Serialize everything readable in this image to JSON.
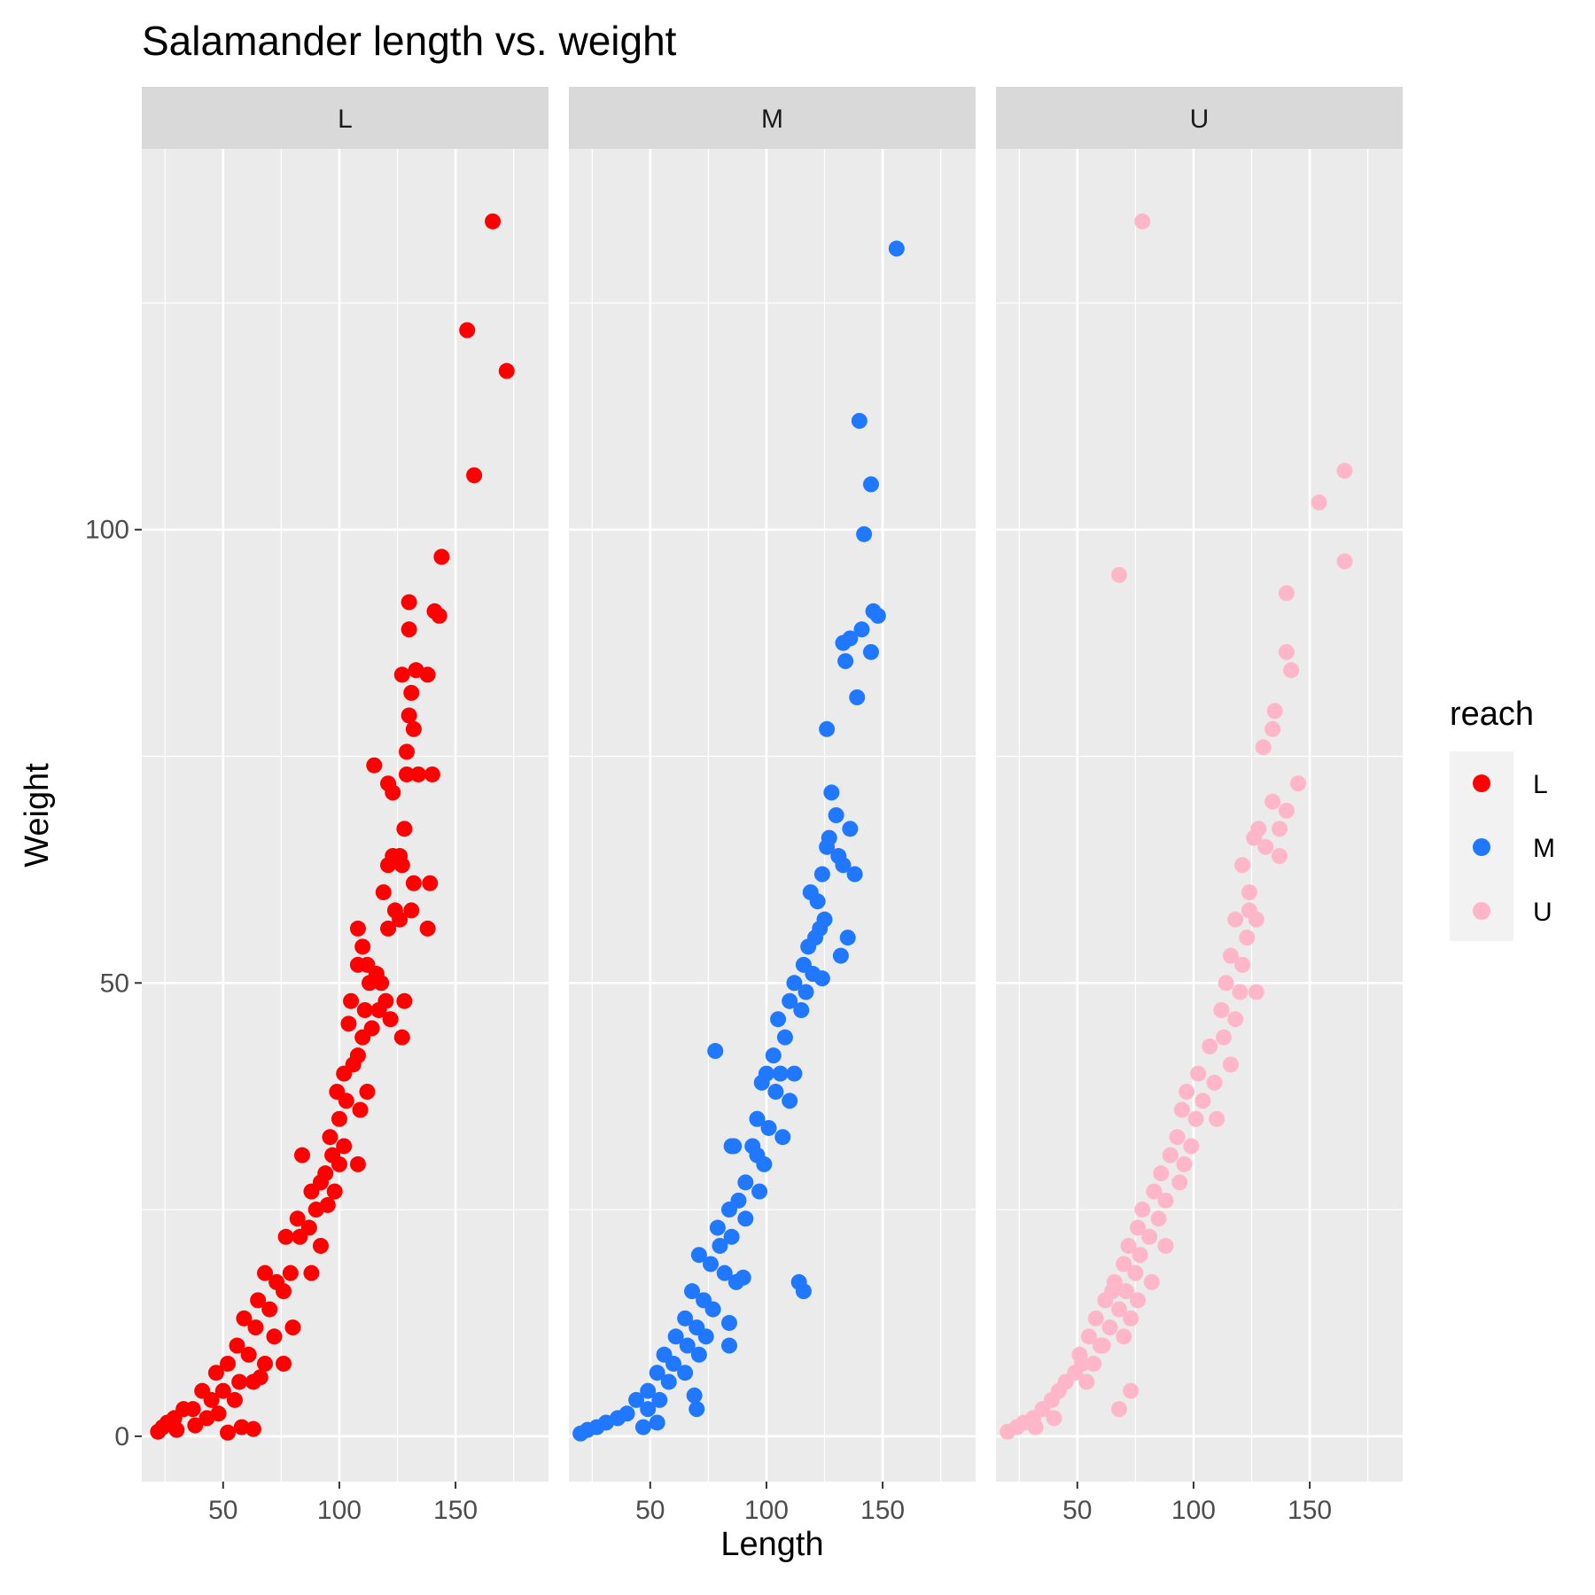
{
  "chart_data": {
    "type": "scatter",
    "title": "Salamander length vs. weight",
    "xlabel": "Length",
    "ylabel": "Weight",
    "xlim": [
      15,
      190
    ],
    "ylim": [
      -5,
      142
    ],
    "x_ticks": [
      50,
      100,
      150
    ],
    "y_ticks": [
      0,
      50,
      100
    ],
    "grid": true,
    "facet_by": "reach",
    "legend": {
      "title": "reach",
      "position": "right"
    },
    "series": [
      {
        "name": "L",
        "color": "#ff0000",
        "points": [
          [
            166,
            134
          ],
          [
            155,
            122
          ],
          [
            172,
            117.5
          ],
          [
            158,
            106
          ],
          [
            144,
            97
          ],
          [
            130,
            92
          ],
          [
            141,
            91
          ],
          [
            143,
            90.5
          ],
          [
            130,
            89
          ],
          [
            133,
            84.5
          ],
          [
            127,
            84
          ],
          [
            138,
            84
          ],
          [
            131,
            82
          ],
          [
            130,
            79.5
          ],
          [
            132,
            78
          ],
          [
            129,
            75.5
          ],
          [
            134,
            73
          ],
          [
            115,
            74
          ],
          [
            129,
            73
          ],
          [
            140,
            73
          ],
          [
            121,
            72
          ],
          [
            123,
            71
          ],
          [
            128,
            67
          ],
          [
            126,
            64
          ],
          [
            123,
            64
          ],
          [
            127,
            63
          ],
          [
            121,
            63
          ],
          [
            119,
            60
          ],
          [
            132,
            61
          ],
          [
            139,
            61
          ],
          [
            124,
            58
          ],
          [
            131,
            58
          ],
          [
            126,
            57
          ],
          [
            121,
            56
          ],
          [
            138,
            56
          ],
          [
            108,
            56
          ],
          [
            110,
            54
          ],
          [
            112,
            52
          ],
          [
            108,
            52
          ],
          [
            116,
            51
          ],
          [
            118,
            50
          ],
          [
            113,
            50
          ],
          [
            120,
            48
          ],
          [
            111,
            47
          ],
          [
            105,
            48
          ],
          [
            117,
            47
          ],
          [
            128,
            48
          ],
          [
            122,
            46
          ],
          [
            104,
            45.5
          ],
          [
            114,
            45
          ],
          [
            110,
            44
          ],
          [
            127,
            44
          ],
          [
            108,
            42
          ],
          [
            102,
            40
          ],
          [
            106,
            41
          ],
          [
            112,
            38
          ],
          [
            99,
            38
          ],
          [
            103,
            37
          ],
          [
            109,
            36
          ],
          [
            100,
            35
          ],
          [
            96,
            33
          ],
          [
            102,
            32
          ],
          [
            97,
            31
          ],
          [
            108,
            30
          ],
          [
            84,
            31
          ],
          [
            100,
            30
          ],
          [
            94,
            29
          ],
          [
            92,
            28
          ],
          [
            98,
            27
          ],
          [
            88,
            27
          ],
          [
            95,
            25.5
          ],
          [
            90,
            25
          ],
          [
            82,
            24
          ],
          [
            87,
            23
          ],
          [
            77,
            22
          ],
          [
            83,
            22
          ],
          [
            92,
            21
          ],
          [
            68,
            18
          ],
          [
            79,
            18
          ],
          [
            88,
            18
          ],
          [
            73,
            17
          ],
          [
            76,
            16
          ],
          [
            65,
            15
          ],
          [
            70,
            14
          ],
          [
            59,
            13
          ],
          [
            64,
            12
          ],
          [
            72,
            11
          ],
          [
            80,
            12
          ],
          [
            56,
            10
          ],
          [
            61,
            9
          ],
          [
            68,
            8
          ],
          [
            76,
            8
          ],
          [
            52,
            8
          ],
          [
            47,
            7
          ],
          [
            57,
            6
          ],
          [
            63,
            6
          ],
          [
            50,
            5
          ],
          [
            41,
            5
          ],
          [
            45,
            4
          ],
          [
            55,
            4
          ],
          [
            37,
            3
          ],
          [
            33,
            3
          ],
          [
            43,
            2
          ],
          [
            29,
            2
          ],
          [
            26,
            1.5
          ],
          [
            24,
            1
          ],
          [
            22,
            0.5
          ],
          [
            30,
            0.7
          ],
          [
            38,
            1.2
          ],
          [
            52,
            0.4
          ],
          [
            58,
            1
          ],
          [
            63,
            0.8
          ],
          [
            48,
            2.5
          ],
          [
            66,
            6.5
          ]
        ]
      },
      {
        "name": "M",
        "color": "#1f78ff",
        "points": [
          [
            156,
            131
          ],
          [
            140,
            112
          ],
          [
            145,
            105
          ],
          [
            142,
            99.5
          ],
          [
            146,
            91
          ],
          [
            148,
            90.5
          ],
          [
            141,
            89
          ],
          [
            136,
            88
          ],
          [
            133,
            87.5
          ],
          [
            145,
            86.5
          ],
          [
            134,
            85.5
          ],
          [
            139,
            81.5
          ],
          [
            126,
            78
          ],
          [
            128,
            71
          ],
          [
            130,
            68.5
          ],
          [
            127,
            66
          ],
          [
            136,
            67
          ],
          [
            126,
            65
          ],
          [
            124,
            62
          ],
          [
            131,
            64
          ],
          [
            133,
            63
          ],
          [
            138,
            62
          ],
          [
            119,
            60
          ],
          [
            122,
            59
          ],
          [
            125,
            57
          ],
          [
            123,
            56
          ],
          [
            121,
            55
          ],
          [
            135,
            55
          ],
          [
            118,
            54
          ],
          [
            132,
            53
          ],
          [
            116,
            52
          ],
          [
            120,
            51
          ],
          [
            112,
            50
          ],
          [
            117,
            49
          ],
          [
            124,
            50.5
          ],
          [
            110,
            48
          ],
          [
            115,
            47
          ],
          [
            105,
            46
          ],
          [
            108,
            44
          ],
          [
            103,
            42
          ],
          [
            106,
            40
          ],
          [
            112,
            40
          ],
          [
            98,
            39
          ],
          [
            104,
            38
          ],
          [
            110,
            37
          ],
          [
            96,
            35
          ],
          [
            101,
            34
          ],
          [
            107,
            33
          ],
          [
            94,
            32
          ],
          [
            99,
            30
          ],
          [
            86,
            32
          ],
          [
            91,
            28
          ],
          [
            97,
            27
          ],
          [
            88,
            26
          ],
          [
            84,
            25
          ],
          [
            91,
            24
          ],
          [
            79,
            23
          ],
          [
            85,
            22
          ],
          [
            80,
            21
          ],
          [
            71,
            20
          ],
          [
            76,
            19
          ],
          [
            82,
            18
          ],
          [
            87,
            17
          ],
          [
            90,
            17.5
          ],
          [
            114,
            17
          ],
          [
            116,
            16
          ],
          [
            68,
            16
          ],
          [
            73,
            15
          ],
          [
            77,
            14
          ],
          [
            65,
            13
          ],
          [
            70,
            12
          ],
          [
            74,
            11
          ],
          [
            84,
            12.5
          ],
          [
            61,
            11
          ],
          [
            66,
            10
          ],
          [
            71,
            9
          ],
          [
            56,
            9
          ],
          [
            60,
            8
          ],
          [
            65,
            7
          ],
          [
            53,
            7
          ],
          [
            58,
            6
          ],
          [
            49,
            5
          ],
          [
            54,
            4
          ],
          [
            44,
            4
          ],
          [
            49,
            3
          ],
          [
            40,
            2.5
          ],
          [
            36,
            2
          ],
          [
            31,
            1.5
          ],
          [
            27,
            1
          ],
          [
            23,
            0.7
          ],
          [
            20,
            0.3
          ],
          [
            47,
            1
          ],
          [
            53,
            1.5
          ],
          [
            69,
            4.5
          ],
          [
            70,
            3
          ],
          [
            78,
            42.5
          ],
          [
            85,
            32
          ],
          [
            84,
            10
          ],
          [
            100,
            40
          ],
          [
            96,
            31
          ]
        ]
      },
      {
        "name": "U",
        "color": "#ffb6c8",
        "points": [
          [
            78,
            134
          ],
          [
            165,
            106.5
          ],
          [
            154,
            103
          ],
          [
            165,
            96.5
          ],
          [
            68,
            95
          ],
          [
            140,
            93
          ],
          [
            140,
            86.5
          ],
          [
            142,
            84.5
          ],
          [
            135,
            80
          ],
          [
            134,
            78
          ],
          [
            130,
            76
          ],
          [
            145,
            72
          ],
          [
            140,
            69
          ],
          [
            134,
            70
          ],
          [
            128,
            67
          ],
          [
            126,
            66
          ],
          [
            137,
            67
          ],
          [
            131,
            65
          ],
          [
            121,
            63
          ],
          [
            137,
            64
          ],
          [
            124,
            60
          ],
          [
            124,
            58
          ],
          [
            118,
            57
          ],
          [
            127,
            57
          ],
          [
            123,
            55
          ],
          [
            116,
            53
          ],
          [
            121,
            52
          ],
          [
            114,
            50
          ],
          [
            120,
            49
          ],
          [
            127,
            49
          ],
          [
            112,
            47
          ],
          [
            118,
            46
          ],
          [
            113,
            44
          ],
          [
            107,
            43
          ],
          [
            116,
            41
          ],
          [
            102,
            40
          ],
          [
            109,
            39
          ],
          [
            97,
            38
          ],
          [
            104,
            37
          ],
          [
            95,
            36
          ],
          [
            101,
            35
          ],
          [
            110,
            35
          ],
          [
            93,
            33
          ],
          [
            99,
            32
          ],
          [
            90,
            31
          ],
          [
            96,
            30
          ],
          [
            86,
            29
          ],
          [
            94,
            28
          ],
          [
            83,
            27
          ],
          [
            88,
            26
          ],
          [
            78,
            25
          ],
          [
            85,
            24
          ],
          [
            76,
            23
          ],
          [
            81,
            22
          ],
          [
            88,
            21
          ],
          [
            72,
            21
          ],
          [
            77,
            20
          ],
          [
            70,
            19
          ],
          [
            75,
            18
          ],
          [
            82,
            17
          ],
          [
            66,
            17
          ],
          [
            71,
            16
          ],
          [
            76,
            15
          ],
          [
            62,
            15
          ],
          [
            68,
            14
          ],
          [
            73,
            13
          ],
          [
            58,
            13
          ],
          [
            64,
            12
          ],
          [
            70,
            11
          ],
          [
            55,
            11
          ],
          [
            61,
            10
          ],
          [
            51,
            9
          ],
          [
            57,
            8
          ],
          [
            49,
            7
          ],
          [
            54,
            6
          ],
          [
            45,
            6
          ],
          [
            39,
            4
          ],
          [
            42,
            5
          ],
          [
            35,
            3
          ],
          [
            31,
            2
          ],
          [
            27,
            1.5
          ],
          [
            24,
            1
          ],
          [
            20,
            0.5
          ],
          [
            32,
            1
          ],
          [
            40,
            2
          ],
          [
            52,
            8
          ],
          [
            60,
            10
          ],
          [
            65,
            16
          ],
          [
            73,
            5
          ],
          [
            68,
            3
          ]
        ]
      }
    ]
  }
}
